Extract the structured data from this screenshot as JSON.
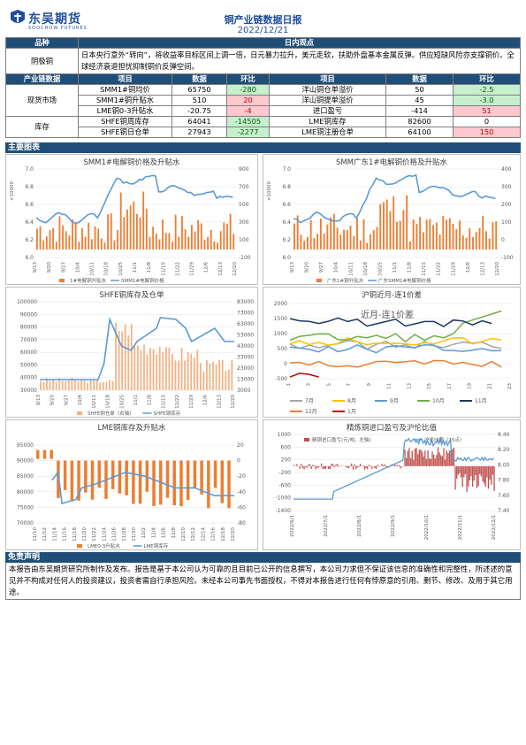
{
  "header": {
    "logo_cn": "东吴期货",
    "logo_en": "SOOCHOW FUTURES",
    "title": "铜产业链数据日报",
    "date": "2022/12/21"
  },
  "view": {
    "col1": "品种",
    "col2": "日内观点",
    "variety": "阴极铜",
    "text": "日本央行意外“转向”，将收益率目标区间上调一倍，日元暴力拉升，美元走软，扶助外盘基本金属反弹。供应短缺风险亦支撑铜价。全球经济衰退担忧抑制铜价反弹空间。"
  },
  "data_table": {
    "headers": [
      "产业链数据",
      "项目",
      "数据",
      "环比",
      "项目",
      "数据",
      "环比"
    ],
    "groups": [
      {
        "name": "现货市场",
        "rows": [
          {
            "a": "SMM1#铜均价",
            "av": "65750",
            "ac": "-280",
            "acs": "g",
            "b": "洋山铜仓单溢价",
            "bv": "50",
            "bc": "-2.5",
            "bcs": "g"
          },
          {
            "a": "SMM1#铜升贴水",
            "av": "510",
            "ac": "20",
            "acs": "r",
            "b": "洋山铜提单溢价",
            "bv": "45",
            "bc": "-3.0",
            "bcs": "g"
          },
          {
            "a": "LME铜0-3升贴水",
            "av": "-20.75",
            "ac": "-4",
            "acs": "r",
            "b": "进口盈亏",
            "bv": "-414",
            "bc": "51",
            "bcs": "r"
          }
        ]
      },
      {
        "name": "库存",
        "rows": [
          {
            "a": "SHFE铜周库存",
            "av": "64041",
            "ac": "-14505",
            "acs": "g",
            "b": "LME铜库存",
            "bv": "82600",
            "bc": "0",
            "bcs": ""
          },
          {
            "a": "SHFE铜日仓单",
            "av": "27943",
            "ac": "-2277",
            "acs": "g",
            "b": "LME铜注册仓单",
            "bv": "64100",
            "bc": "150",
            "bcs": "r"
          }
        ]
      }
    ]
  },
  "charts_label": "主要图表",
  "c1": {
    "title": "SMM1#电解铜价格及升贴水",
    "ylabel": "×10000",
    "yl": [
      "7.0",
      "6.8",
      "6.6",
      "6.4",
      "6.2",
      "6.0"
    ],
    "yr": [
      "900",
      "700",
      "500",
      "300",
      "100",
      "-100"
    ],
    "x": [
      "9/13",
      "9/20",
      "9/27",
      "10/4",
      "10/11",
      "10/18",
      "10/25",
      "11/1",
      "11/8",
      "11/15",
      "11/22",
      "11/29",
      "12/6",
      "12/13",
      "12/20"
    ],
    "legend": [
      "1#电解铜升贴水",
      "SMM1#电解铜价格"
    ]
  },
  "c2": {
    "title": "SMM广东1#电解铜价格及升贴水",
    "ylabel": "×10000",
    "yl": [
      "7.0",
      "6.8",
      "6.6",
      "6.4",
      "6.2",
      "6.0"
    ],
    "yr": [
      "400",
      "300",
      "200",
      "100",
      "0",
      "-100"
    ],
    "x": [
      "9/13",
      "9/20",
      "9/27",
      "10/4",
      "10/11",
      "10/18",
      "10/25",
      "11/1",
      "11/8",
      "11/15",
      "11/22",
      "11/29",
      "12/6",
      "12/13",
      "12/20"
    ],
    "legend": [
      "广东1#铜升贴水",
      "广东SMM1#电解铜价格"
    ]
  },
  "c3": {
    "title": "SHFE铜库存及仓单",
    "yl": [
      "100000",
      "90000",
      "80000",
      "70000",
      "60000",
      "50000",
      "40000",
      "30000"
    ],
    "yr": [
      "83000",
      "73000",
      "63000",
      "53000",
      "43000",
      "33000",
      "23000",
      "13000",
      "3000"
    ],
    "x": [
      "9/13",
      "9/20",
      "9/27",
      "10/4",
      "10/11",
      "10/18",
      "10/25",
      "11/1",
      "11/8",
      "11/15",
      "11/22",
      "11/29",
      "12/6",
      "12/13",
      "12/20"
    ],
    "legend": [
      "SHFE铜仓单（右轴）",
      "SHFE铜库存"
    ]
  },
  "c4": {
    "title": "沪铜近月-连1价差",
    "inner": "近月-连1价差",
    "yl": [
      "2000",
      "1500",
      "1000",
      "500",
      "0",
      "-500"
    ],
    "x": [
      "1",
      "3",
      "5",
      "7",
      "9",
      "11",
      "13",
      "15",
      "17",
      "19",
      "21",
      "23"
    ],
    "legend": [
      "7月",
      "8月",
      "9月",
      "10月",
      "11月",
      "12月",
      "1月"
    ],
    "colors": [
      "#a5a5a5",
      "#ffc000",
      "#5b9bd5",
      "#70ad47",
      "#1f3864",
      "#ed7d31",
      "#c00000"
    ]
  },
  "c5": {
    "title": "LME铜库存及升贴水",
    "yl": [
      "95000",
      "90000",
      "85000",
      "80000",
      "75000",
      "70000"
    ],
    "yr": [
      "20",
      "0",
      "-20",
      "-40",
      "-60",
      "-80"
    ],
    "x": [
      "11/10",
      "11/12",
      "11/14",
      "11/16",
      "11/18",
      "11/20",
      "11/22",
      "11/24",
      "11/26",
      "11/28",
      "11/30",
      "12/2",
      "12/4",
      "12/6",
      "12/8",
      "12/10",
      "12/12",
      "12/14",
      "12/16",
      "12/18",
      "12/20"
    ],
    "legend": [
      "LME0-3升贴水",
      "LME铜库存"
    ]
  },
  "c6": {
    "title": "精炼铜进口盈亏及沪伦比值",
    "yl": [
      "1000",
      "600",
      "200",
      "-200",
      "-600",
      "-1000",
      "-1400"
    ],
    "yr": [
      "8.40",
      "8.20",
      "8.00",
      "7.80",
      "7.60",
      "7.40"
    ],
    "x": [
      "2022/6/1",
      "2022/7/1",
      "2022/8/1",
      "2022/9/1",
      "2022/10/1",
      "2022/11/1",
      "2022/12/1"
    ],
    "legend": [
      "精铜进口盈亏(元/吨，左轴)",
      "沪伦比值（15点）"
    ]
  },
  "disclaimer_label": "免责声明",
  "disclaimer": "本报告由东吴期货研究所制作及发布。报告是基于本公司认为可靠的且目前已公开的信息撰写，本公司力求但不保证该信息的准确性和完整性，所述述的意见并不构成对任何人的投资建议，投资者需自行承担风险。未经本公司事先书面授权，不得对本报告进行任何有悖原意的引用、删节、修改、及用于其它用途。"
}
